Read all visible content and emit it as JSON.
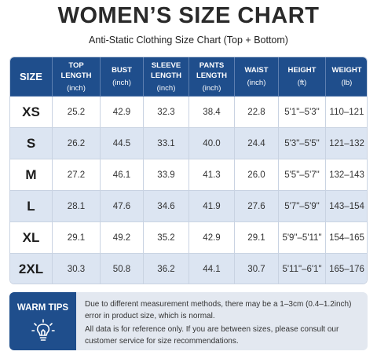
{
  "header": {
    "title": "WOMEN’S SIZE CHART",
    "subtitle": "Anti-Static Clothing Size Chart (Top + Bottom)"
  },
  "table": {
    "columns": [
      {
        "name": "SIZE"
      },
      {
        "name": "TOP LENGTH",
        "unit": "(inch)"
      },
      {
        "name": "BUST",
        "unit": "(inch)"
      },
      {
        "name": "SLEEVE LENGTH",
        "unit": "(inch)"
      },
      {
        "name": "PANTS LENGTH",
        "unit": "(inch)"
      },
      {
        "name": "WAIST",
        "unit": "(inch)"
      },
      {
        "name": "HEIGHT",
        "unit": "(ft)"
      },
      {
        "name": "WEIGHT",
        "unit": "(lb)"
      }
    ],
    "rows": [
      [
        "XS",
        "25.2",
        "42.9",
        "32.3",
        "38.4",
        "22.8",
        "5'1\"–5'3\"",
        "110–121"
      ],
      [
        "S",
        "26.2",
        "44.5",
        "33.1",
        "40.0",
        "24.4",
        "5'3\"–5'5\"",
        "121–132"
      ],
      [
        "M",
        "27.2",
        "46.1",
        "33.9",
        "41.3",
        "26.0",
        "5'5\"–5'7\"",
        "132–143"
      ],
      [
        "L",
        "28.1",
        "47.6",
        "34.6",
        "41.9",
        "27.6",
        "5'7\"–5'9\"",
        "143–154"
      ],
      [
        "XL",
        "29.1",
        "49.2",
        "35.2",
        "42.9",
        "29.1",
        "5'9\"–5'11\"",
        "154–165"
      ],
      [
        "2XL",
        "30.3",
        "50.8",
        "36.2",
        "44.1",
        "30.7",
        "5'11\"–6'1\"",
        "165–176"
      ]
    ]
  },
  "tips": {
    "label": "WARM TIPS",
    "lines": [
      "Due to different measurement methods, there may be a 1–3cm (0.4–1.2inch) error in product size, which is normal.",
      "All data is for reference only. If you are between sizes, please consult our customer service for size recommendations."
    ]
  }
}
